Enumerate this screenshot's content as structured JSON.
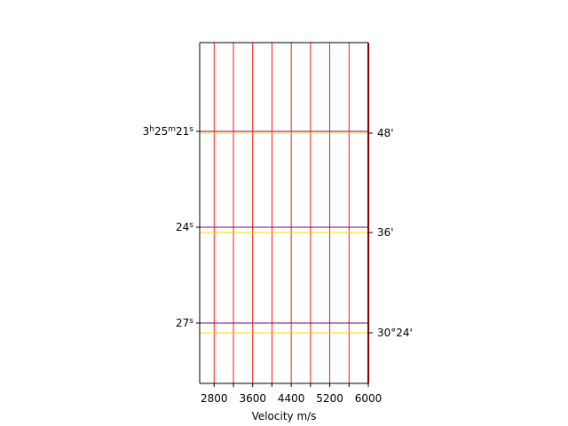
{
  "chart_data": {
    "type": "line",
    "title": "",
    "xlabel": "Velocity m/s",
    "ylabel": "",
    "xlim": [
      2500,
      6000
    ],
    "x_ticks": [
      2800,
      3600,
      4400,
      5200,
      6000
    ],
    "x_tick_labels": [
      "2800",
      "3600",
      "4400",
      "5200",
      "6000"
    ],
    "x_minor_ticks": [
      3200,
      4000,
      4800,
      5600
    ],
    "vertical_gridlines_at": [
      2800,
      3200,
      3600,
      4000,
      4400,
      4800,
      5200,
      5600,
      6000
    ],
    "left_axis": {
      "quantity": "right ascension",
      "ticks": [
        {
          "label_parts": [
            {
              "t": "3"
            },
            {
              "t": "h",
              "sup": true
            },
            {
              "t": "25"
            },
            {
              "t": "m",
              "sup": true
            },
            {
              "t": "21"
            },
            {
              "t": "s",
              "sup": true
            }
          ],
          "value": "3h25m21s"
        },
        {
          "label_parts": [
            {
              "t": "24"
            },
            {
              "t": "s",
              "sup": true
            }
          ],
          "value": "3h25m24s"
        },
        {
          "label_parts": [
            {
              "t": "27"
            },
            {
              "t": "s",
              "sup": true
            }
          ],
          "value": "3h25m27s"
        }
      ]
    },
    "right_axis": {
      "quantity": "declination",
      "ticks": [
        {
          "label": "48'",
          "value": "30°48'"
        },
        {
          "label": "36'",
          "value": "30°36'"
        },
        {
          "label": "30°24'",
          "value": "30°24'"
        }
      ]
    },
    "grid": true,
    "colors": {
      "vertical_grid": "#ff0000",
      "ra_grid": "#800080",
      "dec_grid": "#ffd700",
      "frame": "#000000",
      "right_frame": "#8b0000"
    }
  }
}
